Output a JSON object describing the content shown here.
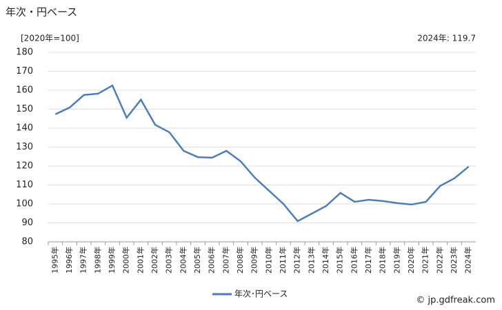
{
  "chart_data": {
    "type": "line",
    "title": "年次・円ベース",
    "subtitle": "[2020年=100]",
    "annotation": "2024年: 119.7",
    "credit": "© jp.gdfreak.com",
    "categories": [
      "1995年",
      "1996年",
      "1997年",
      "1998年",
      "1999年",
      "2000年",
      "2001年",
      "2002年",
      "2003年",
      "2004年",
      "2005年",
      "2006年",
      "2007年",
      "2008年",
      "2009年",
      "2010年",
      "2011年",
      "2012年",
      "2013年",
      "2014年",
      "2015年",
      "2016年",
      "2017年",
      "2018年",
      "2019年",
      "2020年",
      "2021年",
      "2022年",
      "2023年",
      "2024年"
    ],
    "series": [
      {
        "name": "年次･円ベース",
        "color": "#4a7ebb",
        "values": [
          147.3,
          150.9,
          157.5,
          158.2,
          162.5,
          145.5,
          155,
          141.8,
          137.8,
          128,
          124.7,
          124.4,
          128,
          122.5,
          113.8,
          106.9,
          100,
          90.9,
          94.9,
          98.9,
          105.8,
          101.1,
          102.2,
          101.5,
          100.4,
          99.7,
          101.1,
          109.5,
          113.5,
          119.7
        ]
      }
    ],
    "ylim": [
      80,
      180
    ],
    "yticks": [
      80,
      90,
      100,
      110,
      120,
      130,
      140,
      150,
      160,
      170,
      180
    ],
    "grid": true
  }
}
